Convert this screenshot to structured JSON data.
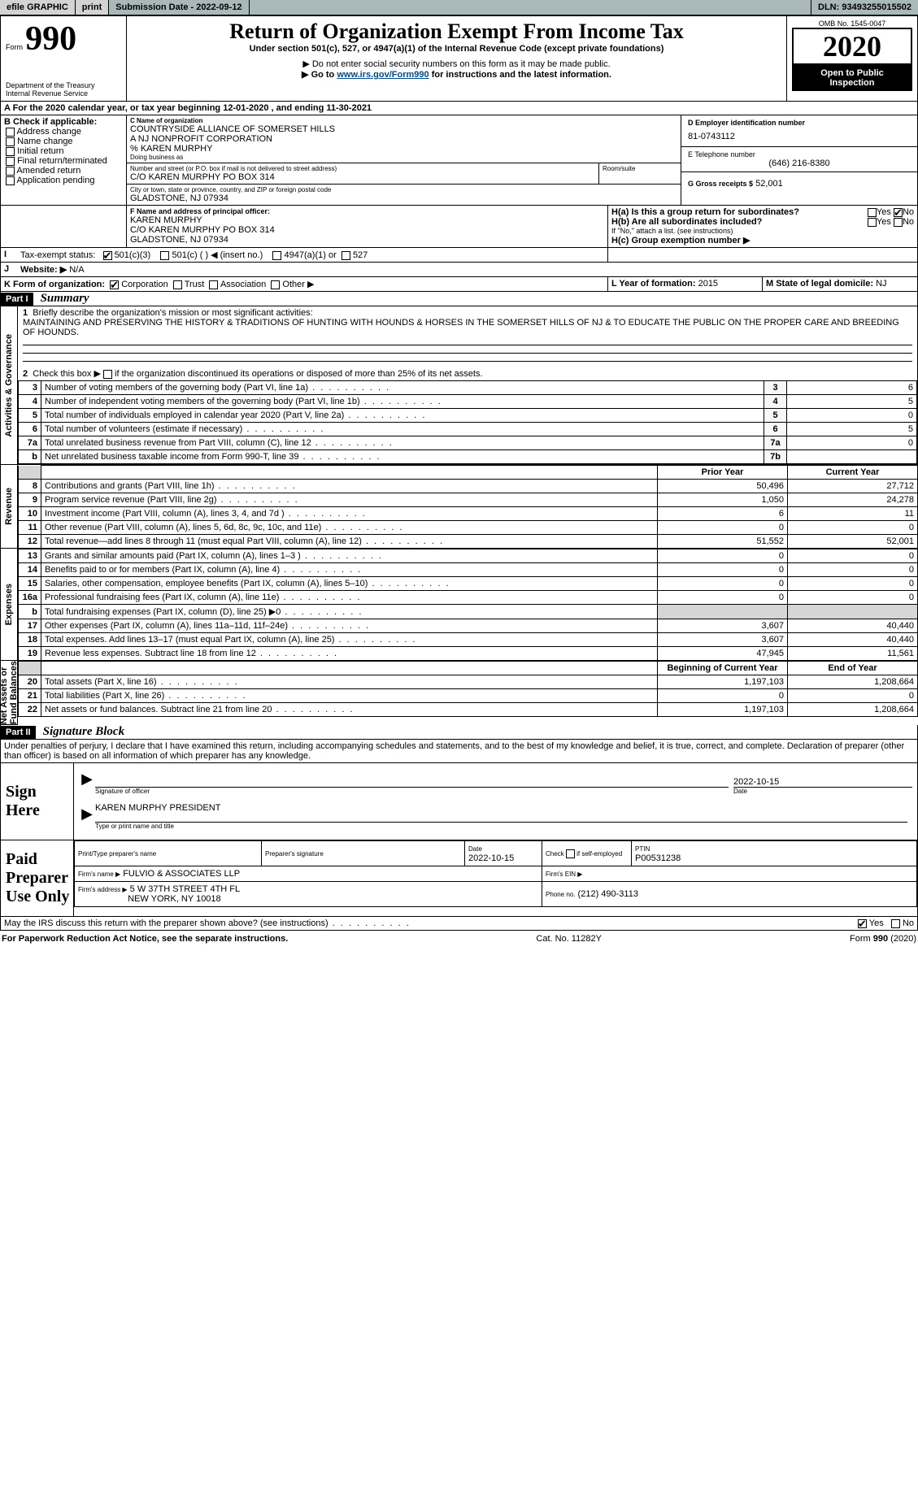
{
  "topbar": {
    "efile": "efile GRAPHIC",
    "print": "print",
    "sub_label": "Submission Date -",
    "sub_date": "2022-09-12",
    "dln_label": "DLN:",
    "dln": "93493255015502"
  },
  "header": {
    "form_word": "Form",
    "form_no": "990",
    "dept1": "Department of the Treasury",
    "dept2": "Internal Revenue Service",
    "title": "Return of Organization Exempt From Income Tax",
    "subtitle": "Under section 501(c), 527, or 4947(a)(1) of the Internal Revenue Code (except private foundations)",
    "note1": "▶ Do not enter social security numbers on this form as it may be made public.",
    "note2_pre": "▶ Go to ",
    "note2_link": "www.irs.gov/Form990",
    "note2_post": " for instructions and the latest information.",
    "omb": "OMB No. 1545-0047",
    "year": "2020",
    "open1": "Open to Public",
    "open2": "Inspection"
  },
  "periodA": {
    "pre": "A For the 2020 calendar year, or tax year beginning ",
    "begin": "12-01-2020",
    "mid": " , and ending ",
    "end": "11-30-2021"
  },
  "boxB": {
    "title": "B Check if applicable:",
    "items": [
      "Address change",
      "Name change",
      "Initial return",
      "Final return/terminated",
      "Amended return",
      "Application pending"
    ]
  },
  "boxC": {
    "label": "C Name of organization",
    "line1": "COUNTRYSIDE ALLIANCE OF SOMERSET HILLS",
    "line2": "A NJ NONPROFIT CORPORATION",
    "line3": "% KAREN MURPHY",
    "dba_label": "Doing business as",
    "addr_label": "Number and street (or P.O. box if mail is not delivered to street address)",
    "room_label": "Room/suite",
    "addr": "C/O KAREN MURPHY PO BOX 314",
    "city_label": "City or town, state or province, country, and ZIP or foreign postal code",
    "city": "GLADSTONE, NJ  07934"
  },
  "boxD": {
    "label": "D Employer identification number",
    "value": "81-0743112"
  },
  "boxE": {
    "label": "E Telephone number",
    "value": "(646) 216-8380"
  },
  "boxG": {
    "label": "G Gross receipts $",
    "value": "52,001"
  },
  "boxF": {
    "label": "F  Name and address of principal officer:",
    "l1": "KAREN MURPHY",
    "l2": "C/O KAREN MURPHY PO BOX 314",
    "l3": "GLADSTONE, NJ  07934"
  },
  "boxH": {
    "a": "H(a)  Is this a group return for subordinates?",
    "b": "H(b)  Are all subordinates included?",
    "note": "If \"No,\" attach a list. (see instructions)",
    "c": "H(c)  Group exemption number ▶",
    "yes": "Yes",
    "no": "No"
  },
  "lineI": {
    "label": "Tax-exempt status:",
    "o1": "501(c)(3)",
    "o2": "501(c) (  ) ◀ (insert no.)",
    "o3": "4947(a)(1) or",
    "o4": "527"
  },
  "lineJ": {
    "label": "Website: ▶",
    "value": "N/A"
  },
  "lineK": {
    "label": "K Form of organization:",
    "o1": "Corporation",
    "o2": "Trust",
    "o3": "Association",
    "o4": "Other ▶"
  },
  "lineL": {
    "label": "L Year of formation:",
    "value": "2015"
  },
  "lineM": {
    "label": "M State of legal domicile:",
    "value": "NJ"
  },
  "part1": {
    "tag": "Part I",
    "title": "Summary",
    "q1": "Briefly describe the organization's mission or most significant activities:",
    "mission": "MAINTAINING AND PRESERVING THE HISTORY & TRADITIONS OF HUNTING WITH HOUNDS & HORSES IN THE SOMERSET HILLS OF NJ & TO EDUCATE THE PUBLIC ON THE PROPER CARE AND BREEDING OF HOUNDS.",
    "q2": "Check this box ▶        if the organization discontinued its operations or disposed of more than 25% of its net assets.",
    "hdr_prior": "Prior Year",
    "hdr_curr": "Current Year",
    "hdr_boy": "Beginning of Current Year",
    "hdr_eoy": "End of Year",
    "side_gov": "Activities & Governance",
    "side_rev": "Revenue",
    "side_exp": "Expenses",
    "side_net": "Net Assets or\nFund Balances",
    "rows_gov": [
      {
        "n": "3",
        "t": "Number of voting members of the governing body (Part VI, line 1a)",
        "box": "3",
        "v": "6"
      },
      {
        "n": "4",
        "t": "Number of independent voting members of the governing body (Part VI, line 1b)",
        "box": "4",
        "v": "5"
      },
      {
        "n": "5",
        "t": "Total number of individuals employed in calendar year 2020 (Part V, line 2a)",
        "box": "5",
        "v": "0"
      },
      {
        "n": "6",
        "t": "Total number of volunteers (estimate if necessary)",
        "box": "6",
        "v": "5"
      },
      {
        "n": "7a",
        "t": "Total unrelated business revenue from Part VIII, column (C), line 12",
        "box": "7a",
        "v": "0"
      },
      {
        "n": "b",
        "t": "Net unrelated business taxable income from Form 990-T, line 39",
        "box": "7b",
        "v": ""
      }
    ],
    "rows_rev": [
      {
        "n": "8",
        "t": "Contributions and grants (Part VIII, line 1h)",
        "p": "50,496",
        "c": "27,712"
      },
      {
        "n": "9",
        "t": "Program service revenue (Part VIII, line 2g)",
        "p": "1,050",
        "c": "24,278"
      },
      {
        "n": "10",
        "t": "Investment income (Part VIII, column (A), lines 3, 4, and 7d )",
        "p": "6",
        "c": "11"
      },
      {
        "n": "11",
        "t": "Other revenue (Part VIII, column (A), lines 5, 6d, 8c, 9c, 10c, and 11e)",
        "p": "0",
        "c": "0"
      },
      {
        "n": "12",
        "t": "Total revenue—add lines 8 through 11 (must equal Part VIII, column (A), line 12)",
        "p": "51,552",
        "c": "52,001"
      }
    ],
    "rows_exp": [
      {
        "n": "13",
        "t": "Grants and similar amounts paid (Part IX, column (A), lines 1–3 )",
        "p": "0",
        "c": "0"
      },
      {
        "n": "14",
        "t": "Benefits paid to or for members (Part IX, column (A), line 4)",
        "p": "0",
        "c": "0"
      },
      {
        "n": "15",
        "t": "Salaries, other compensation, employee benefits (Part IX, column (A), lines 5–10)",
        "p": "0",
        "c": "0"
      },
      {
        "n": "16a",
        "t": "Professional fundraising fees (Part IX, column (A), line 11e)",
        "p": "0",
        "c": "0"
      },
      {
        "n": "b",
        "t": "Total fundraising expenses (Part IX, column (D), line 25) ▶0",
        "p": "",
        "c": ""
      },
      {
        "n": "17",
        "t": "Other expenses (Part IX, column (A), lines 11a–11d, 11f–24e)",
        "p": "3,607",
        "c": "40,440"
      },
      {
        "n": "18",
        "t": "Total expenses. Add lines 13–17 (must equal Part IX, column (A), line 25)",
        "p": "3,607",
        "c": "40,440"
      },
      {
        "n": "19",
        "t": "Revenue less expenses. Subtract line 18 from line 12",
        "p": "47,945",
        "c": "11,561"
      }
    ],
    "rows_net": [
      {
        "n": "20",
        "t": "Total assets (Part X, line 16)",
        "p": "1,197,103",
        "c": "1,208,664"
      },
      {
        "n": "21",
        "t": "Total liabilities (Part X, line 26)",
        "p": "0",
        "c": "0"
      },
      {
        "n": "22",
        "t": "Net assets or fund balances. Subtract line 21 from line 20",
        "p": "1,197,103",
        "c": "1,208,664"
      }
    ]
  },
  "part2": {
    "tag": "Part II",
    "title": "Signature Block",
    "decl": "Under penalties of perjury, I declare that I have examined this return, including accompanying schedules and statements, and to the best of my knowledge and belief, it is true, correct, and complete. Declaration of preparer (other than officer) is based on all information of which preparer has any knowledge."
  },
  "sign": {
    "here": "Sign\nHere",
    "sig_label": "Signature of officer",
    "date_label": "Date",
    "date": "2022-10-15",
    "name": "KAREN MURPHY PRESIDENT",
    "name_label": "Type or print name and title"
  },
  "prep": {
    "here": "Paid\nPreparer\nUse Only",
    "h1": "Print/Type preparer's name",
    "h2": "Preparer's signature",
    "h3": "Date",
    "h4": "Check        if self-employed",
    "h5": "PTIN",
    "date": "2022-10-15",
    "ptin": "P00531238",
    "firm_label": "Firm's name    ▶",
    "firm": "FULVIO & ASSOCIATES LLP",
    "ein_label": "Firm's EIN ▶",
    "addr_label": "Firm's address ▶",
    "addr1": "5 W 37TH STREET 4TH FL",
    "addr2": "NEW YORK, NY  10018",
    "phone_label": "Phone no.",
    "phone": "(212) 490-3113"
  },
  "bottom": {
    "q": "May the IRS discuss this return with the preparer shown above? (see instructions)",
    "yes": "Yes",
    "no": "No",
    "pra": "For Paperwork Reduction Act Notice, see the separate instructions.",
    "cat": "Cat. No. 11282Y",
    "form": "Form 990 (2020)"
  }
}
